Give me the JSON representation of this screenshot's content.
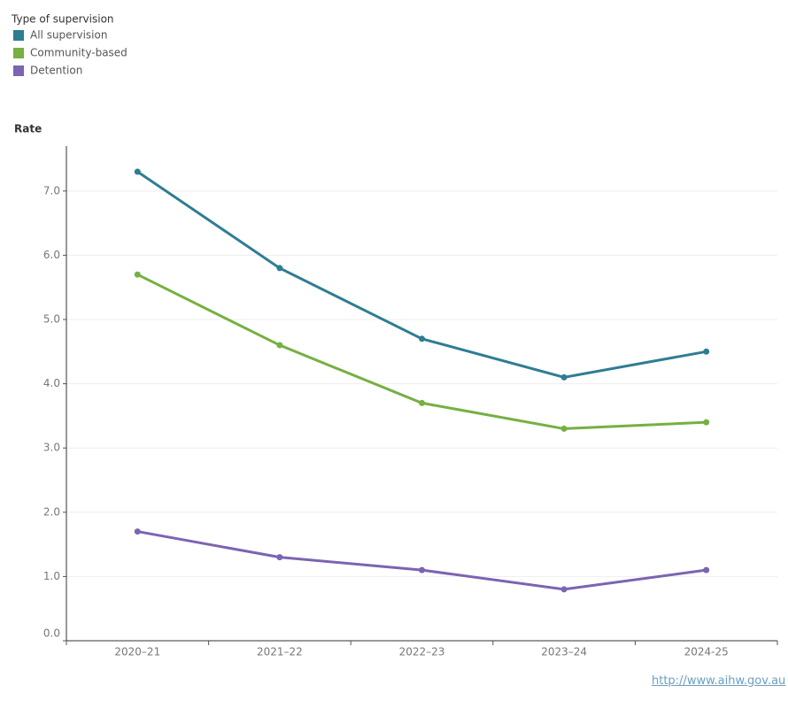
{
  "chart_data": {
    "type": "line",
    "legend_title": "Type of supervision",
    "y_label": "Rate",
    "categories": [
      "2020–21",
      "2021–22",
      "2022–23",
      "2023–24",
      "2024-25"
    ],
    "series": [
      {
        "name": "All supervision",
        "color": "#2e7d94",
        "values": [
          7.3,
          5.8,
          4.7,
          4.1,
          4.5
        ]
      },
      {
        "name": "Community-based",
        "color": "#76b043",
        "values": [
          5.7,
          4.6,
          3.7,
          3.3,
          3.4
        ]
      },
      {
        "name": "Detention",
        "color": "#7b64b2",
        "values": [
          1.7,
          1.3,
          1.1,
          0.8,
          1.1
        ]
      }
    ],
    "ylim": [
      0,
      7.7
    ],
    "yticks": [
      {
        "value": 0,
        "label": "0.0"
      },
      {
        "value": 1,
        "label": "1.0"
      },
      {
        "value": 2,
        "label": "2.0"
      },
      {
        "value": 3,
        "label": "3.0"
      },
      {
        "value": 4,
        "label": "4.0"
      },
      {
        "value": 5,
        "label": "5.0"
      },
      {
        "value": 6,
        "label": "6.0"
      },
      {
        "value": 7,
        "label": "7.0"
      }
    ],
    "grid": true,
    "legend_position": "top-left",
    "source_link": "http://www.aihw.gov.au"
  }
}
